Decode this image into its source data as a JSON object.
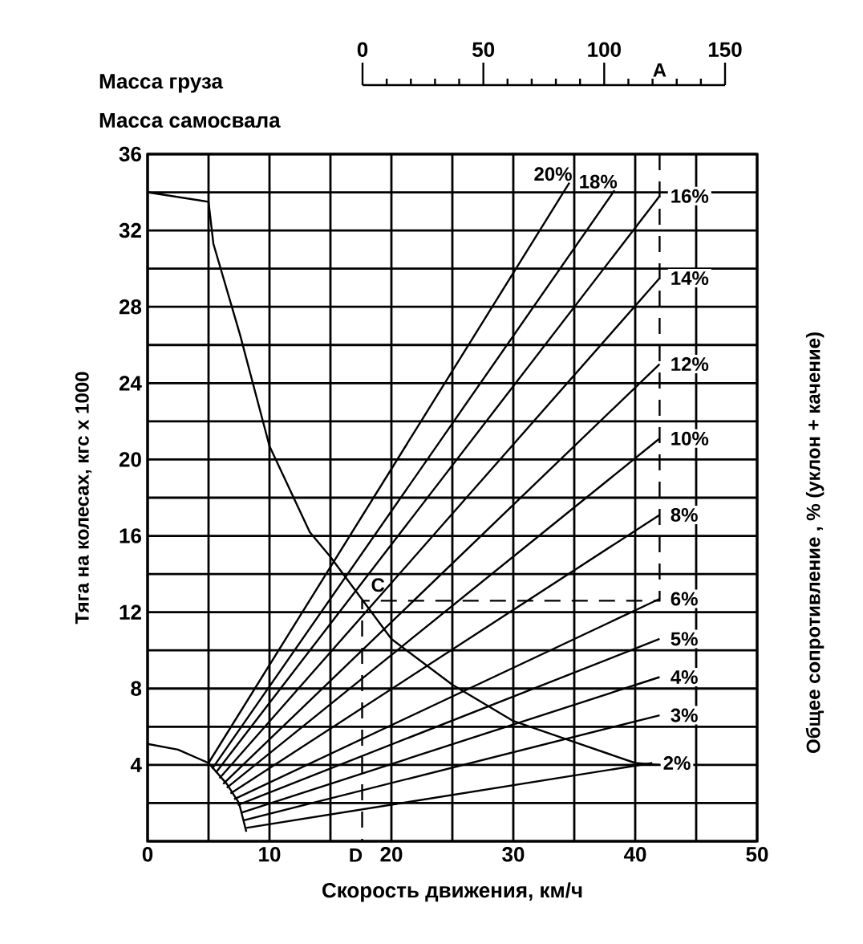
{
  "chart_data": {
    "type": "line",
    "xlabel": "Скорость движения, км/ч",
    "ylabel": "Тяга на колесах, кгс х 1000",
    "y2label": "Общее сопротивление , % (уклон + качение)",
    "x2label": "Масса груза",
    "annotations": [
      "Масса самосвала",
      "A",
      {
        "text": "C",
        "x": 17.6,
        "y": 12.6
      },
      {
        "text": "D",
        "x": 17.6,
        "y": 0
      }
    ],
    "xlim": [
      0,
      50
    ],
    "ylim": [
      0,
      36
    ],
    "xticks": [
      0,
      10,
      20,
      30,
      40,
      50
    ],
    "yticks": [
      {
        "value": 0,
        "label": null
      },
      4,
      8,
      12,
      16,
      20,
      24,
      28,
      32,
      36
    ],
    "x2lim": [
      0,
      150
    ],
    "x2ticks": [
      0,
      50,
      100,
      150
    ],
    "grid": true,
    "marker": "none",
    "line_style": "solid",
    "series": [
      {
        "color": "#000000",
        "x": [
          0,
          5,
          5.4,
          7.6,
          10,
          13.3,
          15,
          20,
          25,
          30,
          35,
          40,
          42
        ],
        "values": [
          34,
          33.5,
          31.3,
          26.5,
          20.7,
          16.2,
          14.9,
          10.6,
          8.2,
          6.3,
          5.2,
          4.1,
          4
        ]
      },
      {
        "color": "#000000",
        "x": [
          0,
          2.5,
          5,
          6.5,
          7.5,
          8.1
        ],
        "values": [
          5.1,
          4.8,
          4.1,
          3,
          2,
          0.5
        ]
      },
      {
        "name": "20%",
        "color": "#000000",
        "x": [
          5,
          34.6
        ],
        "values": [
          4.1,
          34.5
        ]
      },
      {
        "name": "18%",
        "color": "#000000",
        "x": [
          5.3,
          38.3
        ],
        "values": [
          3.8,
          34.1
        ]
      },
      {
        "name": "16%",
        "color": "#000000",
        "x": [
          5.6,
          42
        ],
        "values": [
          3.6,
          33.8
        ]
      },
      {
        "name": "14%",
        "color": "#000000",
        "x": [
          5.9,
          42
        ],
        "values": [
          3.3,
          29.5
        ]
      },
      {
        "name": "12%",
        "color": "#000000",
        "x": [
          6.2,
          42
        ],
        "values": [
          3,
          25
        ]
      },
      {
        "name": "10%",
        "color": "#000000",
        "x": [
          6.5,
          42
        ],
        "values": [
          2.8,
          21.1
        ]
      },
      {
        "name": "8%",
        "color": "#000000",
        "x": [
          6.8,
          42
        ],
        "values": [
          2.5,
          17.1
        ]
      },
      {
        "name": "6%",
        "color": "#000000",
        "x": [
          7.1,
          42
        ],
        "values": [
          2.2,
          12.7
        ]
      },
      {
        "name": "5%",
        "color": "#000000",
        "x": [
          7.4,
          42
        ],
        "values": [
          1.9,
          10.6
        ]
      },
      {
        "name": "4%",
        "color": "#000000",
        "x": [
          7.7,
          42
        ],
        "values": [
          1.5,
          8.6
        ]
      },
      {
        "name": "3%",
        "color": "#000000",
        "x": [
          7.9,
          42
        ],
        "values": [
          1.1,
          6.6
        ]
      },
      {
        "name": "2%",
        "color": "#000000",
        "x": [
          8.1,
          41.4
        ],
        "values": [
          0.7,
          4.1
        ]
      },
      {
        "color": "#000000",
        "line_style": "dashed",
        "x": [
          42,
          42,
          17.6,
          17.6
        ],
        "values": [
          36,
          12.6,
          12.6,
          0
        ]
      }
    ]
  }
}
